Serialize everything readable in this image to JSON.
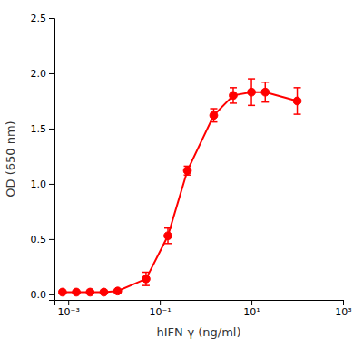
{
  "chart_data": {
    "type": "line",
    "xlabel": "hIFN-γ (ng/ml)",
    "ylabel": "OD (650 nm)",
    "x": [
      0.00075,
      0.0015,
      0.003,
      0.006,
      0.012,
      0.05,
      0.15,
      0.4,
      1.5,
      4.0,
      10.0,
      20.0,
      100.0
    ],
    "values": [
      0.02,
      0.02,
      0.02,
      0.02,
      0.03,
      0.14,
      0.53,
      1.12,
      1.62,
      1.8,
      1.83,
      1.83,
      1.75
    ],
    "errors": [
      0.01,
      0.01,
      0.01,
      0.01,
      0.01,
      0.06,
      0.07,
      0.04,
      0.06,
      0.07,
      0.12,
      0.09,
      0.12
    ],
    "color": "#FF0000",
    "marker": "circle",
    "line_style": "solid",
    "log": "x",
    "grid": false,
    "xlim": [
      0.0005,
      1000
    ],
    "ylim": [
      -0.05,
      2.5
    ],
    "xticks": [
      {
        "value": 0.001,
        "label": "10⁻³"
      },
      {
        "value": 0.1,
        "label": "10⁻¹"
      },
      {
        "value": 10,
        "label": "10¹"
      },
      {
        "value": 1000,
        "label": "10³"
      }
    ],
    "yticks": [
      {
        "value": 0,
        "label": "0.0"
      },
      0.5,
      {
        "value": 1,
        "label": "1.0"
      },
      1.5,
      {
        "value": 2,
        "label": "2.0"
      },
      2.5
    ]
  }
}
